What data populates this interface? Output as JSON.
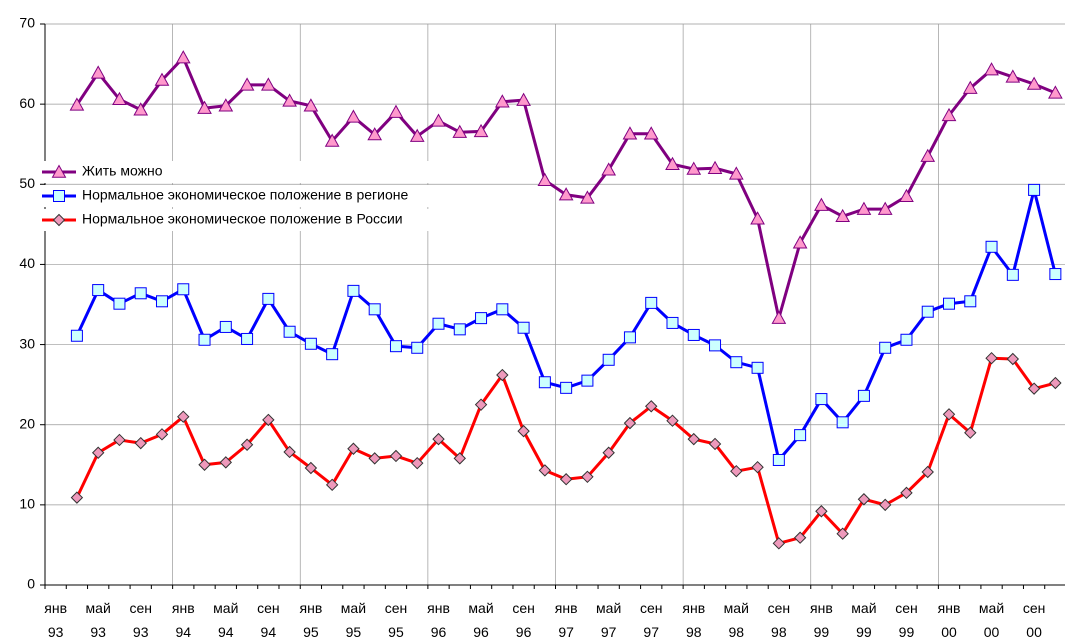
{
  "chart_data": {
    "type": "line",
    "categories": [
      "янв 93",
      null,
      "май 93",
      null,
      "сен 93",
      null,
      "янв 94",
      null,
      "май 94",
      null,
      "сен 94",
      null,
      "янв 95",
      null,
      "май 95",
      null,
      "сен 95",
      null,
      "янв 96",
      null,
      "май 96",
      null,
      "сен 96",
      null,
      "янв 97",
      null,
      "май 97",
      null,
      "сен 97",
      null,
      "янв 98",
      null,
      "май 98",
      null,
      "сен 98",
      null,
      "янв 99",
      null,
      "май 99",
      null,
      "сен 99",
      null,
      "янв 00",
      null,
      "май 00",
      null,
      "сен 00",
      null
    ],
    "series": [
      {
        "name": "Жить можно",
        "color": "#800080",
        "marker": "triangle",
        "marker_fill": "#ff99cc",
        "values": [
          null,
          59.9,
          63.9,
          60.6,
          59.3,
          63.0,
          65.8,
          59.5,
          59.8,
          62.4,
          62.4,
          60.4,
          59.8,
          55.4,
          58.4,
          56.2,
          59.0,
          56.0,
          57.9,
          56.5,
          56.6,
          60.3,
          60.5,
          50.5,
          48.7,
          48.3,
          51.8,
          56.3,
          56.3,
          52.5,
          51.9,
          52.0,
          51.3,
          45.7,
          33.3,
          42.7,
          47.4,
          46.0,
          46.9,
          46.9,
          48.5,
          53.5,
          58.6,
          62.0,
          64.3,
          63.4,
          62.5,
          61.4
        ]
      },
      {
        "name": "Нормальное экономическое положение в регионе",
        "color": "#0000ff",
        "marker": "square",
        "marker_fill": "#ccffff",
        "values": [
          null,
          31.1,
          36.8,
          35.1,
          36.4,
          35.4,
          36.9,
          30.6,
          32.2,
          30.7,
          35.7,
          31.6,
          30.1,
          28.8,
          36.7,
          34.4,
          29.8,
          29.6,
          32.6,
          31.9,
          33.3,
          34.4,
          32.1,
          25.3,
          24.6,
          25.5,
          28.1,
          30.9,
          35.2,
          32.7,
          31.2,
          29.9,
          27.8,
          27.1,
          15.6,
          18.7,
          23.2,
          20.3,
          23.6,
          29.6,
          30.6,
          34.1,
          35.1,
          35.4,
          42.2,
          38.7,
          49.3,
          38.8
        ]
      },
      {
        "name": "Нормальное экономическое положение в России",
        "color": "#ff0000",
        "marker": "diamond",
        "marker_fill": "#ee99bb",
        "values": [
          null,
          10.9,
          16.5,
          18.1,
          17.7,
          18.8,
          21.0,
          15.0,
          15.3,
          17.5,
          20.6,
          16.6,
          14.6,
          12.5,
          17.0,
          15.8,
          16.1,
          15.2,
          18.2,
          15.8,
          22.5,
          26.2,
          19.2,
          14.3,
          13.2,
          13.5,
          16.5,
          20.2,
          22.3,
          20.5,
          18.2,
          17.6,
          14.2,
          14.7,
          5.2,
          5.9,
          9.2,
          6.4,
          10.7,
          10.0,
          11.5,
          14.1,
          21.3,
          19.0,
          28.3,
          28.2,
          24.5,
          25.2
        ]
      }
    ],
    "ylim": [
      0,
      70
    ],
    "yticks": [
      0,
      10,
      20,
      30,
      40,
      50,
      60,
      70
    ],
    "grid": true,
    "legend": "upper left"
  }
}
